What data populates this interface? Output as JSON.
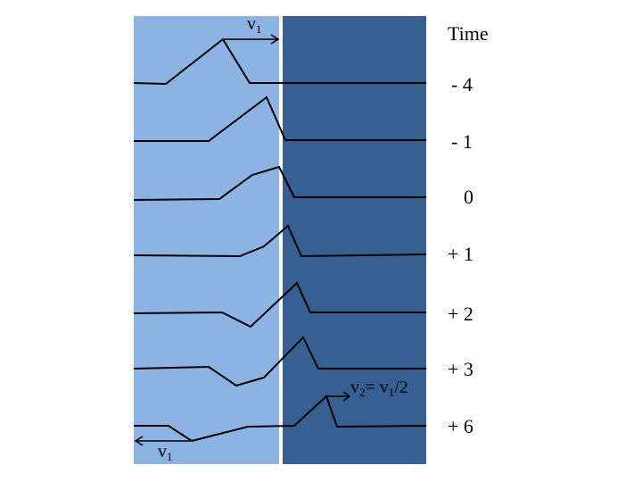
{
  "header": {
    "time_label": "Time"
  },
  "rows": [
    {
      "time": "- 4"
    },
    {
      "time": "- 1"
    },
    {
      "time": "0"
    },
    {
      "time": "+ 1"
    },
    {
      "time": "+ 2"
    },
    {
      "time": "+ 3"
    },
    {
      "time": "+ 6"
    }
  ],
  "annotations": {
    "v1_top": {
      "main": "v",
      "sub": "1"
    },
    "v1_bottom": {
      "main": "v",
      "sub": "1"
    },
    "v2": {
      "main": "v",
      "sub": "2",
      "eq": "= v",
      "eq_sub": "1",
      "tail": "/2"
    }
  },
  "colors": {
    "medium1": "#8db3e2",
    "medium2": "#366092",
    "boundary": "#ffffff",
    "wave": "#000000"
  }
}
